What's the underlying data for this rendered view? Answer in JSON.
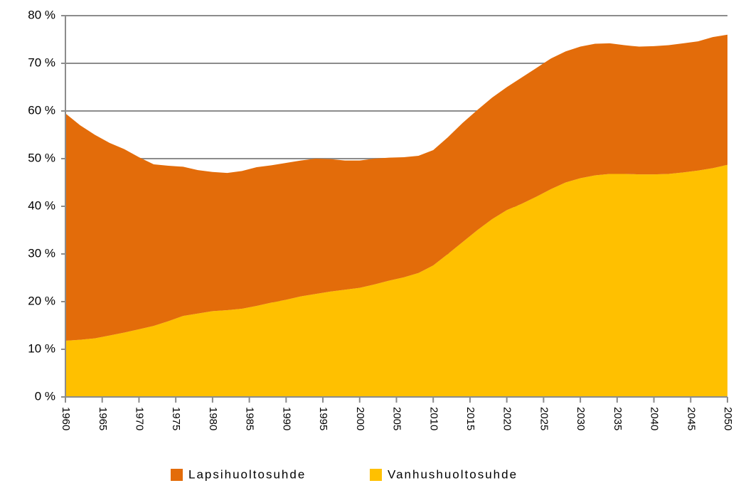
{
  "chart_data": {
    "type": "stacked-area",
    "x": [
      1960,
      1962,
      1964,
      1966,
      1968,
      1970,
      1972,
      1974,
      1976,
      1978,
      1980,
      1982,
      1984,
      1986,
      1988,
      1990,
      1992,
      1994,
      1996,
      1998,
      2000,
      2002,
      2004,
      2006,
      2008,
      2010,
      2012,
      2014,
      2016,
      2018,
      2020,
      2022,
      2024,
      2026,
      2028,
      2030,
      2032,
      2034,
      2036,
      2038,
      2040,
      2042,
      2044,
      2046,
      2048,
      2050
    ],
    "series": [
      {
        "name": "Lapsihuoltosuhde",
        "color": "#e36c0a",
        "values": [
          47.7,
          45,
          42.7,
          40.4,
          38.5,
          36.1,
          33.9,
          32.6,
          31.3,
          30.1,
          29.2,
          28.8,
          28.9,
          29.1,
          28.8,
          28.7,
          28.5,
          28.4,
          27.8,
          27.1,
          26.7,
          26.4,
          25.8,
          25.2,
          24.6,
          24.2,
          24.5,
          25,
          25.2,
          25.5,
          25.8,
          26.5,
          27,
          27.4,
          27.5,
          27.6,
          27.6,
          27.4,
          27,
          26.8,
          26.9,
          27,
          27.1,
          27.1,
          27.5,
          27.3
        ]
      },
      {
        "name": "Vanhushuoltosuhde",
        "color": "#ffc000",
        "values": [
          11.8,
          12,
          12.3,
          12.9,
          13.5,
          14.2,
          14.9,
          15.9,
          17,
          17.5,
          18,
          18.2,
          18.5,
          19.1,
          19.8,
          20.4,
          21.1,
          21.6,
          22.1,
          22.5,
          22.9,
          23.6,
          24.4,
          25.1,
          26,
          27.6,
          30,
          32.5,
          35,
          37.3,
          39.2,
          40.5,
          42,
          43.6,
          45,
          45.9,
          46.5,
          46.8,
          46.8,
          46.7,
          46.7,
          46.8,
          47.1,
          47.5,
          48,
          48.7
        ]
      }
    ],
    "xlim": [
      1960,
      2050
    ],
    "xticks": [
      1960,
      1965,
      1970,
      1975,
      1980,
      1985,
      1990,
      1995,
      2000,
      2005,
      2010,
      2015,
      2020,
      2025,
      2030,
      2035,
      2040,
      2045,
      2050
    ],
    "ylim": [
      0,
      80
    ],
    "yticks": [
      {
        "value": 0,
        "label": "0 %"
      },
      {
        "value": 10,
        "label": "10 %"
      },
      {
        "value": 20,
        "label": "20 %"
      },
      {
        "value": 30,
        "label": "30 %"
      },
      {
        "value": 40,
        "label": "40 %"
      },
      {
        "value": 50,
        "label": "50 %"
      },
      {
        "value": 60,
        "label": "60 %"
      },
      {
        "value": 70,
        "label": "70 %"
      },
      {
        "value": 80,
        "label": "80 %"
      }
    ],
    "grid": true,
    "legend": "bottom"
  }
}
